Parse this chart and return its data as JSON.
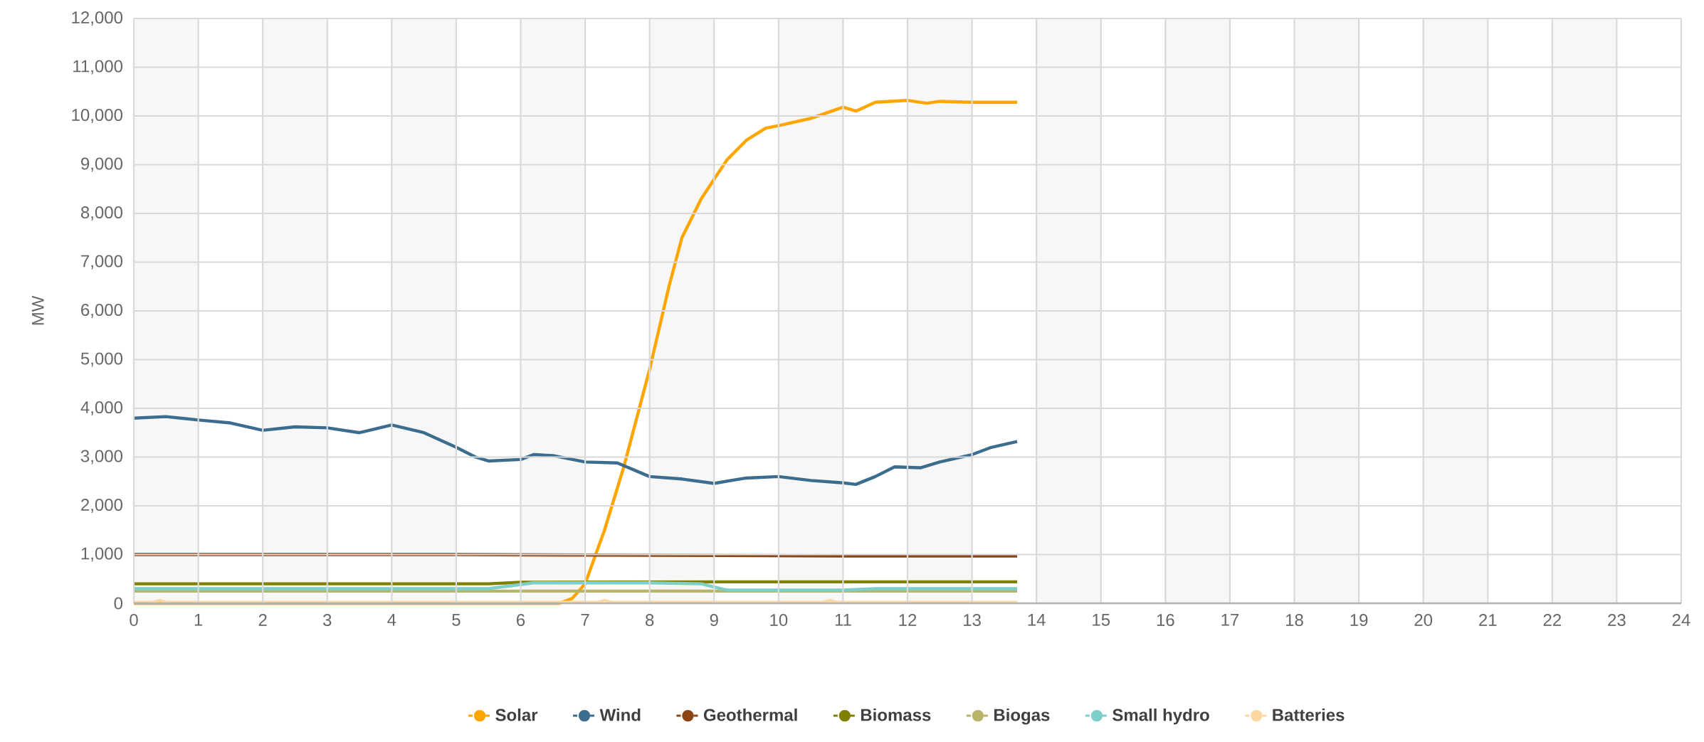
{
  "chart_data": {
    "type": "line",
    "ylabel": "MW",
    "xlim": [
      0,
      24
    ],
    "xticks": [
      0,
      1,
      2,
      3,
      4,
      5,
      6,
      7,
      8,
      9,
      10,
      11,
      12,
      13,
      14,
      15,
      16,
      17,
      18,
      19,
      20,
      21,
      22,
      23,
      24
    ],
    "ylim": [
      0,
      12000
    ],
    "yticks": [
      0,
      {
        "value": 1000,
        "label": "1,000"
      },
      {
        "value": 2000,
        "label": "2,000"
      },
      {
        "value": 3000,
        "label": "3,000"
      },
      {
        "value": 4000,
        "label": "4,000"
      },
      {
        "value": 5000,
        "label": "5,000"
      },
      {
        "value": 6000,
        "label": "6,000"
      },
      {
        "value": 7000,
        "label": "7,000"
      },
      {
        "value": 8000,
        "label": "8,000"
      },
      {
        "value": 9000,
        "label": "9,000"
      },
      {
        "value": 10000,
        "label": "10,000"
      },
      {
        "value": 11000,
        "label": "11,000"
      },
      {
        "value": 12000,
        "label": "12,000"
      }
    ],
    "grid": true,
    "legend": "bottom",
    "line_style": "solid",
    "bands": [
      {
        "axis": "x",
        "from": 0,
        "to": 1,
        "color": "#f7f7f7"
      },
      {
        "axis": "x",
        "from": 2,
        "to": 3,
        "color": "#f7f7f7"
      },
      {
        "axis": "x",
        "from": 4,
        "to": 5,
        "color": "#f7f7f7"
      },
      {
        "axis": "x",
        "from": 6,
        "to": 7,
        "color": "#f7f7f7"
      },
      {
        "axis": "x",
        "from": 8,
        "to": 9,
        "color": "#f7f7f7"
      },
      {
        "axis": "x",
        "from": 10,
        "to": 11,
        "color": "#f7f7f7"
      },
      {
        "axis": "x",
        "from": 12,
        "to": 13,
        "color": "#f7f7f7"
      },
      {
        "axis": "x",
        "from": 14,
        "to": 15,
        "color": "#f7f7f7"
      },
      {
        "axis": "x",
        "from": 16,
        "to": 17,
        "color": "#f7f7f7"
      },
      {
        "axis": "x",
        "from": 18,
        "to": 19,
        "color": "#f7f7f7"
      },
      {
        "axis": "x",
        "from": 20,
        "to": 21,
        "color": "#f7f7f7"
      },
      {
        "axis": "x",
        "from": 22,
        "to": 23,
        "color": "#f7f7f7"
      }
    ],
    "series": [
      {
        "name": "Solar",
        "color": "#ffa500",
        "x": [
          0,
          2,
          4,
          6,
          6.6,
          6.8,
          7,
          7.3,
          7.6,
          8,
          8.3,
          8.5,
          8.8,
          9,
          9.2,
          9.5,
          9.8,
          10,
          10.5,
          11,
          11.2,
          11.5,
          12,
          12.3,
          12.5,
          13,
          13.7
        ],
        "values": [
          0,
          0,
          0,
          0,
          0,
          100,
          400,
          1500,
          2800,
          4800,
          6500,
          7500,
          8300,
          8700,
          9100,
          9500,
          9750,
          9800,
          9950,
          10180,
          10100,
          10280,
          10320,
          10260,
          10300,
          10280,
          10280
        ]
      },
      {
        "name": "Wind",
        "color": "#3d6d8e",
        "x": [
          0,
          0.5,
          1,
          1.5,
          2,
          2.5,
          3,
          3.5,
          4,
          4.5,
          5,
          5.3,
          5.5,
          6,
          6.2,
          6.5,
          7,
          7.5,
          8,
          8.5,
          9,
          9.5,
          10,
          10.5,
          11,
          11.2,
          11.5,
          11.8,
          12.2,
          12.5,
          13,
          13.3,
          13.7
        ],
        "values": [
          3800,
          3830,
          3760,
          3700,
          3550,
          3620,
          3600,
          3500,
          3660,
          3500,
          3200,
          3000,
          2920,
          2950,
          3050,
          3030,
          2900,
          2880,
          2600,
          2550,
          2460,
          2570,
          2600,
          2520,
          2470,
          2440,
          2600,
          2800,
          2780,
          2900,
          3050,
          3200,
          3320
        ]
      },
      {
        "name": "Geothermal",
        "color": "#8b4513",
        "x": [
          0,
          5,
          11,
          13.7
        ],
        "values": [
          1000,
          1000,
          970,
          970
        ]
      },
      {
        "name": "Biomass",
        "color": "#808000",
        "x": [
          0,
          5.5,
          6,
          9,
          13.7
        ],
        "values": [
          400,
          400,
          430,
          440,
          440
        ]
      },
      {
        "name": "Biogas",
        "color": "#b8b46a",
        "x": [
          0,
          6,
          9,
          13.7
        ],
        "values": [
          250,
          250,
          250,
          250
        ]
      },
      {
        "name": "Small hydro",
        "color": "#7ecfc9",
        "x": [
          0,
          5.5,
          5.8,
          6.2,
          8,
          8.8,
          9.2,
          11,
          11.5,
          13.7
        ],
        "values": [
          300,
          300,
          350,
          420,
          420,
          400,
          270,
          270,
          300,
          300
        ]
      },
      {
        "name": "Batteries",
        "color": "#fed8a0",
        "x": [
          0,
          0.3,
          0.4,
          0.5,
          7.2,
          7.3,
          7.4,
          10.7,
          10.8,
          10.9,
          13.7
        ],
        "values": [
          20,
          20,
          60,
          20,
          20,
          60,
          20,
          20,
          60,
          20,
          20
        ]
      }
    ]
  }
}
